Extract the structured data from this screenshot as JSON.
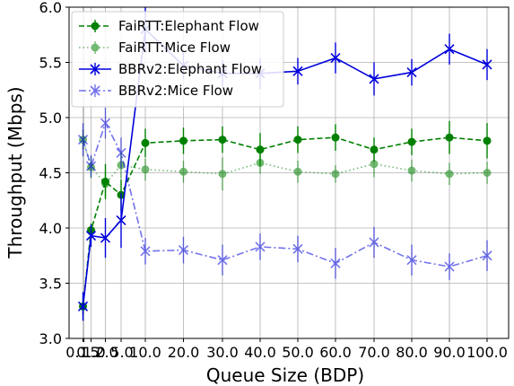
{
  "chart_data": {
    "type": "line",
    "xlabel": "Queue Size (BDP)",
    "ylabel": "Throughput (Mbps)",
    "ylim": [
      3.0,
      6.0
    ],
    "yticks": [
      "3.0",
      "3.5",
      "4.0",
      "4.5",
      "5.0",
      "5.5",
      "6.0"
    ],
    "categories": [
      "0.1",
      "0.5",
      "1.0",
      "2.0",
      "5.0",
      "10.0",
      "20.0",
      "30.0",
      "40.0",
      "50.0",
      "60.0",
      "70.0",
      "80.0",
      "90.0",
      "100.0"
    ],
    "x": [
      0.1,
      0.5,
      1.0,
      2.0,
      5.0,
      10.0,
      20.0,
      30.0,
      40.0,
      50.0,
      60.0,
      70.0,
      80.0,
      90.0,
      100.0
    ],
    "grid": true,
    "legend_position": "top-left",
    "series": [
      {
        "name": "FaiRTT:Elephant Flow",
        "color": "#008000",
        "line_style": "dashed",
        "marker": "circle",
        "opacity": 1.0,
        "values": [
          3.29,
          null,
          3.98,
          4.42,
          4.3,
          4.77,
          4.79,
          4.8,
          4.71,
          4.8,
          4.82,
          4.71,
          4.78,
          4.82,
          4.79
        ],
        "errors": [
          0.07,
          null,
          0.06,
          0.16,
          0.14,
          0.13,
          0.12,
          0.12,
          0.15,
          0.12,
          0.12,
          0.11,
          0.12,
          0.15,
          0.16
        ]
      },
      {
        "name": "FaiRTT:Mice Flow",
        "color": "#008000",
        "line_style": "dotted",
        "marker": "circle",
        "opacity": 0.55,
        "values": [
          4.8,
          null,
          4.55,
          4.4,
          4.57,
          4.53,
          4.51,
          4.49,
          4.59,
          4.51,
          4.49,
          4.58,
          4.52,
          4.49,
          4.5
        ],
        "errors": [
          0.09,
          null,
          0.1,
          0.12,
          0.12,
          0.1,
          0.1,
          0.15,
          0.1,
          0.1,
          0.08,
          0.12,
          0.1,
          0.1,
          0.1
        ]
      },
      {
        "name": "BBRv2:Elephant Flow",
        "color": "#0000dd",
        "line_style": "solid",
        "marker": "x",
        "opacity": 1.0,
        "values": [
          3.29,
          null,
          3.93,
          3.91,
          4.07,
          5.8,
          5.47,
          5.4,
          5.4,
          5.42,
          5.54,
          5.35,
          5.41,
          5.62,
          5.48
        ],
        "errors": [
          0.13,
          null,
          0.1,
          0.18,
          0.25,
          0.2,
          0.12,
          0.12,
          0.14,
          0.12,
          0.14,
          0.15,
          0.12,
          0.14,
          0.14
        ]
      },
      {
        "name": "BBRv2:Mice Flow",
        "color": "#0000dd",
        "line_style": "dashdot",
        "marker": "x",
        "opacity": 0.55,
        "values": [
          4.8,
          null,
          4.56,
          4.95,
          4.68,
          3.79,
          3.8,
          3.71,
          3.83,
          3.81,
          3.68,
          3.87,
          3.71,
          3.65,
          3.75
        ],
        "errors": [
          0.15,
          null,
          0.1,
          0.14,
          0.14,
          0.12,
          0.12,
          0.14,
          0.12,
          0.12,
          0.14,
          0.14,
          0.14,
          0.12,
          0.14
        ]
      }
    ]
  }
}
